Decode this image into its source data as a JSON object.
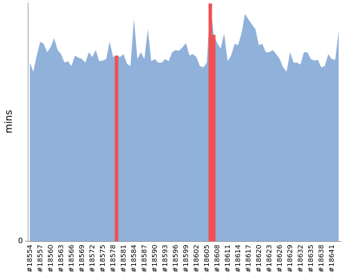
{
  "chart_data": {
    "type": "area",
    "y_label": "mins",
    "categories": [
      "#18554",
      null,
      null,
      "#18557",
      null,
      null,
      "#18560",
      null,
      null,
      "#18563",
      null,
      null,
      "#18566",
      null,
      null,
      "#18569",
      null,
      null,
      "#18572",
      null,
      null,
      "#18575",
      null,
      null,
      "#18578",
      null,
      null,
      "#18581",
      null,
      null,
      "#18584",
      null,
      null,
      "#18587",
      null,
      null,
      "#18590",
      null,
      null,
      "#18593",
      null,
      null,
      "#18596",
      null,
      null,
      "#18599",
      null,
      null,
      "#18602",
      null,
      null,
      "#18605",
      null,
      null,
      "#18608",
      null,
      null,
      "#18611",
      null,
      null,
      "#18614",
      null,
      null,
      "#18617",
      null,
      null,
      "#18620",
      null,
      null,
      "#18623",
      null,
      null,
      "#18626",
      null,
      null,
      "#18629",
      null,
      null,
      "#18632",
      null,
      null,
      "#18635",
      null,
      null,
      "#18638",
      null,
      null,
      "#18641",
      null,
      null
    ],
    "series": [
      {
        "color": "#8fb1da",
        "values": [
          75.1,
          71.3,
          78.1,
          83.9,
          83.0,
          79.5,
          81.6,
          85.4,
          80.4,
          78.7,
          75.1,
          75.7,
          73.7,
          78.1,
          77.2,
          76.6,
          75.1,
          79.5,
          77.5,
          80.4,
          75.7,
          76.0,
          76.6,
          83.9,
          77.5,
          78.1,
          77.5,
          78.7,
          74.6,
          73.7,
          93.6,
          76.6,
          79.5,
          76.6,
          89.2,
          75.7,
          76.6,
          75.1,
          75.1,
          76.6,
          75.7,
          79.5,
          80.4,
          80.1,
          81.6,
          83.3,
          78.1,
          78.7,
          77.5,
          73.7,
          73.1,
          75.1,
          100,
          86.8,
          83.3,
          81.0,
          87.4,
          75.7,
          78.1,
          83.0,
          82.5,
          87.4,
          95.6,
          93.3,
          91.2,
          89.2,
          82.5,
          83.0,
          79.5,
          79.5,
          80.4,
          78.7,
          76.6,
          73.1,
          71.3,
          79.5,
          75.1,
          75.1,
          74.3,
          79.5,
          79.5,
          76.6,
          76.0,
          76.3,
          73.1,
          73.7,
          78.7,
          76.6,
          76.3,
          88.3
        ]
      },
      {
        "color": "#f05050",
        "values": [
          null,
          null,
          null,
          null,
          null,
          null,
          null,
          null,
          null,
          null,
          null,
          null,
          null,
          null,
          null,
          null,
          null,
          null,
          null,
          null,
          null,
          null,
          null,
          null,
          null,
          78.1,
          null,
          null,
          null,
          null,
          null,
          null,
          null,
          null,
          null,
          null,
          null,
          null,
          null,
          null,
          null,
          null,
          null,
          null,
          null,
          null,
          null,
          null,
          null,
          null,
          null,
          null,
          100,
          86.8,
          null,
          null,
          null,
          null,
          null,
          null,
          null,
          null,
          null,
          null,
          null,
          null,
          null,
          null,
          null,
          null,
          null,
          null,
          null,
          null,
          null,
          null,
          null,
          null,
          null,
          null,
          null,
          null,
          null,
          null,
          null,
          null,
          null,
          null,
          null,
          null
        ]
      }
    ],
    "ylim": [
      0,
      100
    ],
    "yticks": [
      0
    ]
  }
}
